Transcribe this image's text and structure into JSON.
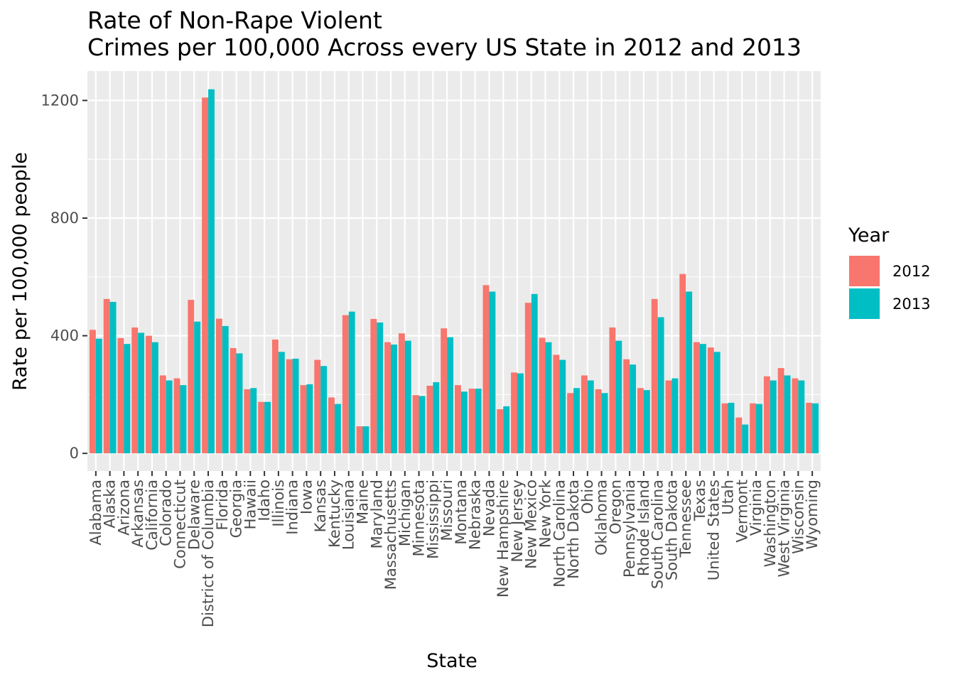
{
  "chart_data": {
    "type": "bar",
    "title_line1": "Rate of Non-Rape Violent",
    "title_line2": "Crimes per 100,000 Across every US State in 2012 and 2013",
    "xlabel": "State",
    "ylabel": "Rate per 100,000 people",
    "ylim": [
      -60,
      1300
    ],
    "yticks": [
      0,
      400,
      800,
      1200
    ],
    "grid": true,
    "legend": {
      "title": "Year",
      "position": "right"
    },
    "categories": [
      "Alabama",
      "Alaska",
      "Arizona",
      "Arkansas",
      "California",
      "Colorado",
      "Connecticut",
      "Delaware",
      "District of Columbia",
      "Florida",
      "Georgia",
      "Hawaii",
      "Idaho",
      "Illinois",
      "Indiana",
      "Iowa",
      "Kansas",
      "Kentucky",
      "Louisiana",
      "Maine",
      "Maryland",
      "Massachusetts",
      "Michigan",
      "Minnesota",
      "Mississippi",
      "Missouri",
      "Montana",
      "Nebraska",
      "Nevada",
      "New Hampshire",
      "New Jersey",
      "New Mexico",
      "New York",
      "North Carolina",
      "North Dakota",
      "Ohio",
      "Oklahoma",
      "Oregon",
      "Pennsylvania",
      "Rhode Island",
      "South Carolina",
      "South Dakota",
      "Tennessee",
      "Texas",
      "United States",
      "Utah",
      "Vermont",
      "Virginia",
      "Washington",
      "West Virginia",
      "Wisconsin",
      "Wyoming"
    ],
    "series": [
      {
        "name": "2012",
        "color": "#F8766D",
        "values": [
          420,
          525,
          392,
          428,
          400,
          265,
          255,
          522,
          1210,
          458,
          358,
          218,
          175,
          387,
          320,
          232,
          318,
          190,
          470,
          92,
          457,
          378,
          408,
          198,
          230,
          425,
          232,
          220,
          572,
          150,
          275,
          512,
          393,
          335,
          205,
          265,
          218,
          428,
          320,
          222,
          525,
          248,
          610,
          378,
          360,
          170,
          122,
          170,
          262,
          290,
          255,
          172
        ]
      },
      {
        "name": "2013",
        "color": "#00BFC4",
        "values": [
          390,
          515,
          372,
          410,
          378,
          248,
          232,
          448,
          1238,
          433,
          340,
          222,
          175,
          345,
          322,
          235,
          297,
          168,
          482,
          92,
          445,
          370,
          383,
          195,
          242,
          395,
          210,
          220,
          550,
          160,
          272,
          542,
          378,
          318,
          222,
          248,
          205,
          383,
          302,
          215,
          463,
          255,
          550,
          372,
          345,
          172,
          98,
          168,
          248,
          265,
          248,
          170
        ]
      }
    ]
  }
}
